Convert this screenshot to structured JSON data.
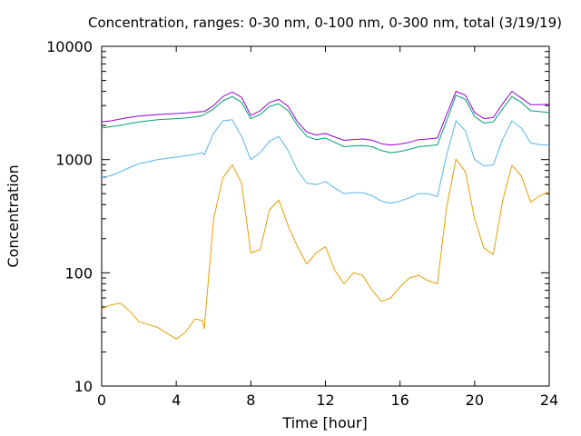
{
  "chart_data": {
    "type": "line",
    "title": "Concentration, ranges: 0-30 nm, 0-100 nm, 0-300 nm, total (3/19/19)",
    "xlabel": "Time [hour]",
    "ylabel": "Concentration",
    "xlim": [
      0,
      24
    ],
    "ylim": [
      10,
      10000
    ],
    "yscale": "log",
    "grid": false,
    "legend": "none",
    "x_ticks": [
      "0",
      "4",
      "8",
      "12",
      "16",
      "20",
      "24"
    ],
    "y_ticks": [
      "10",
      "100",
      "1000",
      "10000"
    ],
    "x": [
      0,
      0.5,
      1,
      1.5,
      2,
      3,
      4,
      4.5,
      5,
      5.4,
      5.5,
      6,
      6.5,
      7,
      7.5,
      8,
      8.5,
      9,
      9.5,
      10,
      10.5,
      11,
      11.5,
      12,
      12.5,
      13,
      13.5,
      14,
      14.5,
      15,
      15.5,
      16,
      16.5,
      17,
      17.5,
      18,
      18.5,
      19,
      19.5,
      20,
      20.5,
      21,
      21.5,
      22,
      22.5,
      23,
      23.5,
      24
    ],
    "series": [
      {
        "color": "#e69f00",
        "values": [
          48,
          52,
          54,
          46,
          37,
          33,
          26,
          30,
          39,
          38,
          32,
          300,
          690,
          900,
          620,
          150,
          160,
          360,
          440,
          260,
          170,
          120,
          150,
          170,
          105,
          80,
          100,
          95,
          70,
          56,
          60,
          75,
          90,
          95,
          85,
          80,
          380,
          1010,
          780,
          300,
          165,
          145,
          430,
          890,
          720,
          420,
          480,
          520
        ]
      },
      {
        "color": "#56b4e9",
        "values": [
          700,
          720,
          780,
          850,
          920,
          1000,
          1050,
          1080,
          1110,
          1150,
          1100,
          1700,
          2200,
          2250,
          1600,
          1000,
          1150,
          1450,
          1600,
          1200,
          800,
          620,
          600,
          640,
          560,
          500,
          510,
          510,
          480,
          430,
          410,
          430,
          460,
          500,
          500,
          470,
          1100,
          2200,
          1800,
          1000,
          880,
          900,
          1500,
          2200,
          1900,
          1400,
          1350,
          1340
        ]
      },
      {
        "color": "#009e73",
        "values": [
          1900,
          1950,
          2000,
          2080,
          2150,
          2250,
          2300,
          2330,
          2380,
          2450,
          2500,
          2800,
          3300,
          3600,
          3200,
          2300,
          2500,
          2950,
          3100,
          2700,
          2000,
          1600,
          1500,
          1550,
          1420,
          1300,
          1320,
          1330,
          1300,
          1200,
          1150,
          1180,
          1230,
          1300,
          1320,
          1350,
          2200,
          3700,
          3400,
          2400,
          2100,
          2150,
          2800,
          3600,
          3200,
          2700,
          2650,
          2600
        ]
      },
      {
        "color": "#9400d3",
        "values": [
          2150,
          2200,
          2280,
          2360,
          2420,
          2500,
          2550,
          2580,
          2620,
          2650,
          2650,
          3000,
          3600,
          3950,
          3550,
          2450,
          2700,
          3200,
          3400,
          2950,
          2150,
          1750,
          1650,
          1700,
          1580,
          1480,
          1500,
          1520,
          1480,
          1380,
          1340,
          1370,
          1420,
          1500,
          1520,
          1550,
          2500,
          4000,
          3700,
          2600,
          2300,
          2350,
          3100,
          4000,
          3500,
          3050,
          3050,
          3080
        ]
      }
    ]
  }
}
